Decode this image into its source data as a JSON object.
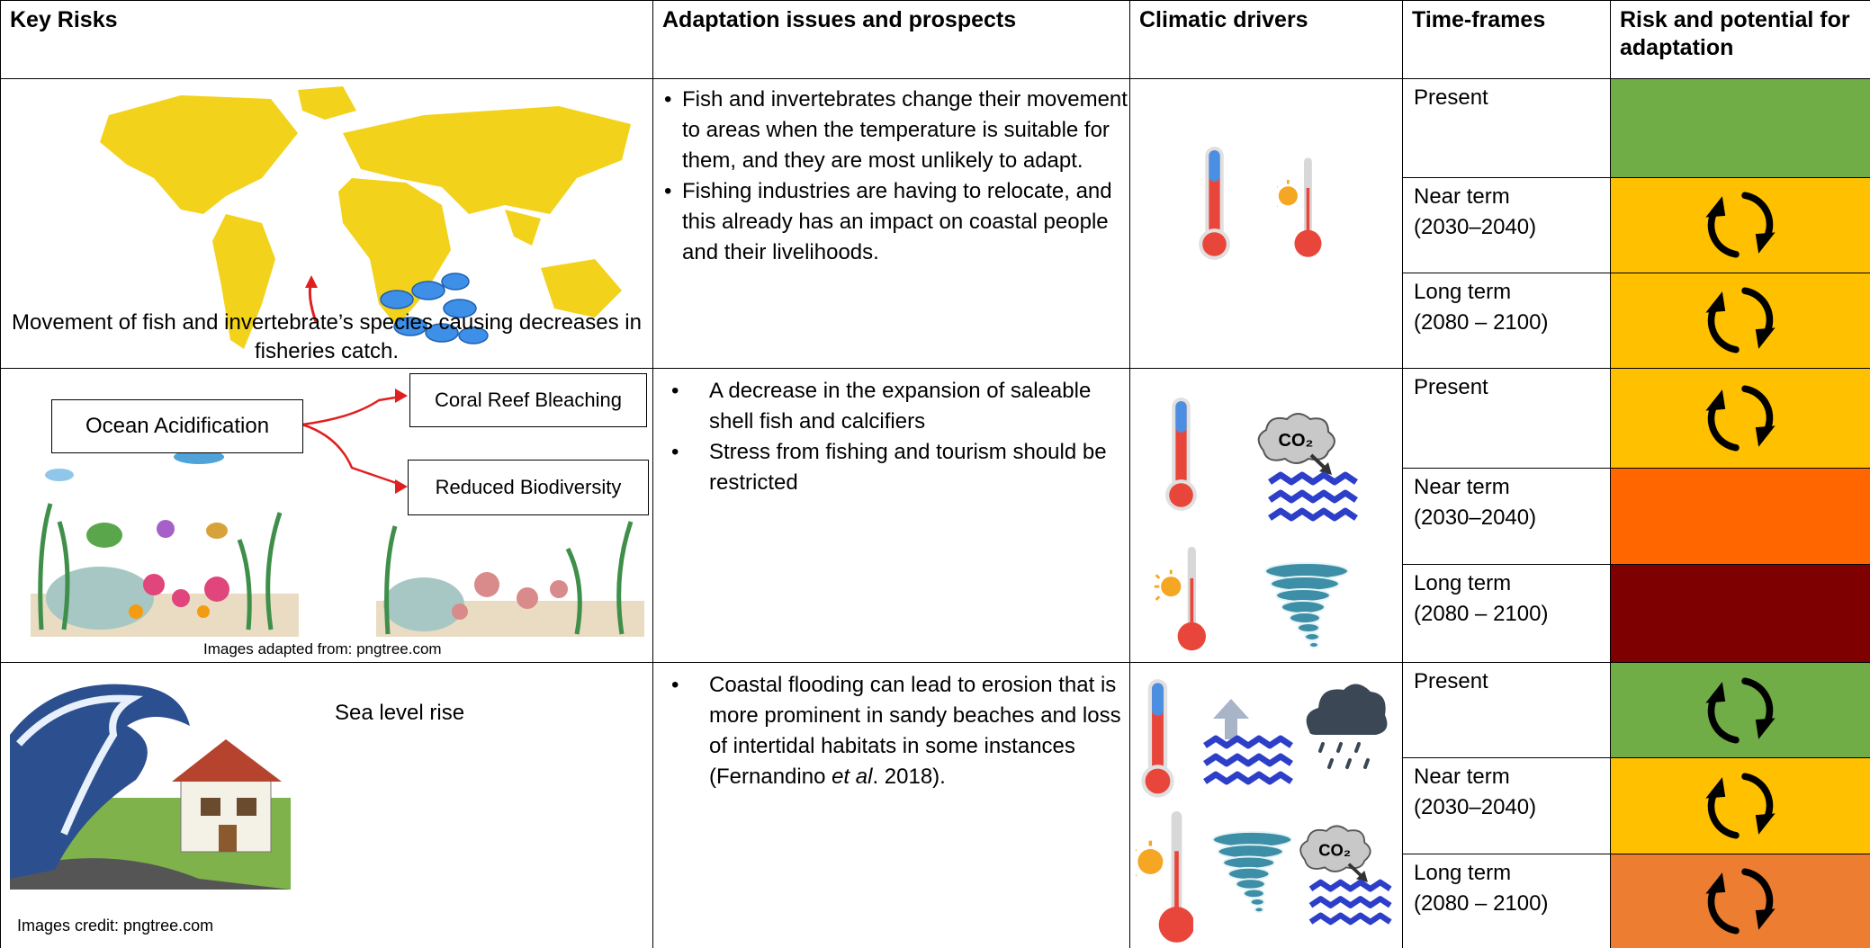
{
  "header": [
    "Key Risks",
    "Adaptation issues and prospects",
    "Climatic drivers",
    "Time-frames",
    "Risk and potential for adaptation"
  ],
  "co2_label": "CO₂",
  "rows": [
    {
      "key_risk": {
        "caption": "Movement of fish and invertebrate’s species causing decreases in fisheries catch."
      },
      "bullets": [
        [
          "Fish and invertebrates change their movement to areas when the temperature is suitable for them, and they are most unlikely to adapt."
        ],
        [
          "Fishing industries are having to relocate, and this already has an impact on coastal people and their livelihoods."
        ]
      ],
      "timeframes": [
        {
          "label": [
            "Present"
          ],
          "color": "#70ad47",
          "adaptation_icon": false
        },
        {
          "label": [
            "Near term",
            "(2030–2040)"
          ],
          "color": "#ffc000",
          "adaptation_icon": true
        },
        {
          "label": [
            "Long term",
            "(2080 – 2100)"
          ],
          "color": "#ffc000",
          "adaptation_icon": true
        }
      ]
    },
    {
      "key_risk": {
        "source": "Ocean Acidification",
        "effects": [
          "Coral Reef Bleaching",
          "Reduced Biodiversity"
        ],
        "credit": "Images adapted from: pngtree.com"
      },
      "bullets": [
        [
          "A decrease in the expansion of saleable shell fish and calcifiers"
        ],
        [
          "Stress from fishing and tourism should be restricted"
        ]
      ],
      "timeframes": [
        {
          "label": [
            "Present"
          ],
          "color": "#ffc000",
          "adaptation_icon": true
        },
        {
          "label": [
            "Near term",
            "(2030–2040)"
          ],
          "color": "#ff6600",
          "adaptation_icon": false
        },
        {
          "label": [
            "Long term",
            "(2080 – 2100)"
          ],
          "color": "#7f0000",
          "adaptation_icon": false
        }
      ]
    },
    {
      "key_risk": {
        "title": "Sea level rise",
        "credit": "Images credit: pngtree.com"
      },
      "bullets": [
        [
          "Coastal flooding can lead to erosion that is more prominent in sandy beaches and loss of intertidal habitats in some instances (Fernandino ",
          "et al",
          ". 2018)."
        ]
      ],
      "timeframes": [
        {
          "label": [
            "Present"
          ],
          "color": "#70ad47",
          "adaptation_icon": true
        },
        {
          "label": [
            "Near term",
            "(2030–2040)"
          ],
          "color": "#ffc000",
          "adaptation_icon": true
        },
        {
          "label": [
            "Long term",
            "(2080 – 2100)"
          ],
          "color": "#ed7d31",
          "adaptation_icon": true
        }
      ]
    }
  ]
}
